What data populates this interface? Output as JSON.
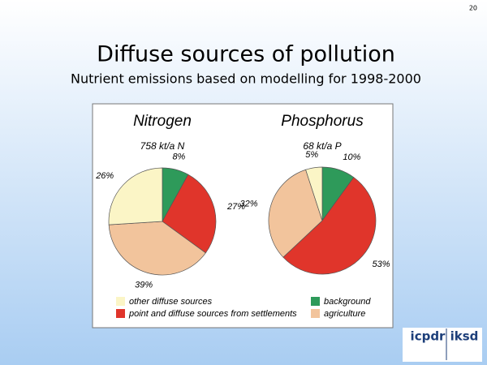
{
  "slide": {
    "number": "20",
    "title": "Diffuse sources of pollution",
    "subtitle": "Nutrient emissions based on modelling for 1998-2000"
  },
  "logos": [
    "icpdr",
    "iksd"
  ],
  "chart_data": [
    {
      "type": "pie",
      "title": "Nitrogen",
      "subtitle": "758 kt/a N",
      "categories": [
        "background",
        "point and diffuse sources from settlements",
        "agriculture",
        "other diffuse sources"
      ],
      "colors": [
        "#2e9a5a",
        "#e0352b",
        "#f2c49c",
        "#fbf5c6"
      ],
      "values": [
        8,
        27,
        39,
        26
      ],
      "value_labels": [
        "8%",
        "27%",
        "39%",
        "26%"
      ]
    },
    {
      "type": "pie",
      "title": "Phosphorus",
      "subtitle": "68 kt/a P",
      "categories": [
        "background",
        "point and diffuse sources from settlements",
        "agriculture",
        "other diffuse sources"
      ],
      "colors": [
        "#2e9a5a",
        "#e0352b",
        "#f2c49c",
        "#fbf5c6"
      ],
      "values": [
        10,
        53,
        32,
        5
      ],
      "value_labels": [
        "10%",
        "53%",
        "32%",
        "5%"
      ]
    }
  ]
}
